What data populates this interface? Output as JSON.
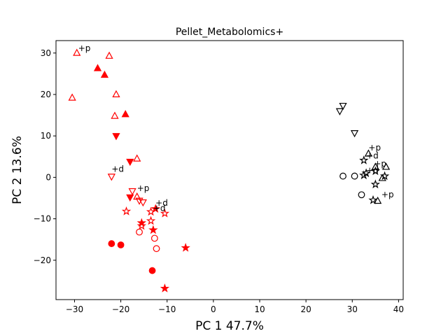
{
  "chart_data": {
    "type": "scatter",
    "title": "Pellet_Metabolomics+",
    "xlabel": "PC 1 47.7%",
    "ylabel": "PC 2 13.6%",
    "xlim": [
      -34,
      41
    ],
    "ylim": [
      -29.5,
      33
    ],
    "xticks": [
      -30,
      -20,
      -10,
      0,
      10,
      20,
      30,
      40
    ],
    "yticks": [
      -20,
      -10,
      0,
      10,
      20,
      30
    ],
    "grid": false,
    "colors": {
      "red": "#ff0000",
      "black": "#000000"
    },
    "points": [
      {
        "x": -29.5,
        "y": 30.0,
        "marker": "triangle-up",
        "fill": "open",
        "color": "#ff0000"
      },
      {
        "x": -22.5,
        "y": 29.3,
        "marker": "triangle-up",
        "fill": "open",
        "color": "#ff0000"
      },
      {
        "x": -25.0,
        "y": 26.3,
        "marker": "triangle-up",
        "fill": "filled",
        "color": "#ff0000"
      },
      {
        "x": -23.5,
        "y": 24.7,
        "marker": "triangle-up",
        "fill": "filled",
        "color": "#ff0000"
      },
      {
        "x": -21.0,
        "y": 20.0,
        "marker": "triangle-up",
        "fill": "open",
        "color": "#ff0000"
      },
      {
        "x": -30.5,
        "y": 19.2,
        "marker": "triangle-up",
        "fill": "open",
        "color": "#ff0000"
      },
      {
        "x": -19.0,
        "y": 15.2,
        "marker": "triangle-up",
        "fill": "filled",
        "color": "#ff0000"
      },
      {
        "x": -21.3,
        "y": 14.8,
        "marker": "triangle-up",
        "fill": "open",
        "color": "#ff0000"
      },
      {
        "x": -21.0,
        "y": 10.0,
        "marker": "triangle-down",
        "fill": "filled",
        "color": "#ff0000"
      },
      {
        "x": -16.5,
        "y": 4.5,
        "marker": "triangle-up",
        "fill": "open",
        "color": "#ff0000"
      },
      {
        "x": -18.0,
        "y": 3.8,
        "marker": "triangle-down",
        "fill": "filled",
        "color": "#ff0000"
      },
      {
        "x": -22.0,
        "y": 0.2,
        "marker": "triangle-down",
        "fill": "open",
        "color": "#ff0000"
      },
      {
        "x": -17.5,
        "y": -3.3,
        "marker": "triangle-down",
        "fill": "open",
        "color": "#ff0000"
      },
      {
        "x": -18.0,
        "y": -4.8,
        "marker": "triangle-down",
        "fill": "filled",
        "color": "#ff0000"
      },
      {
        "x": -16.5,
        "y": -4.7,
        "marker": "triangle-up",
        "fill": "open",
        "color": "#ff0000"
      },
      {
        "x": -16.0,
        "y": -5.6,
        "marker": "triangle-down",
        "fill": "open",
        "color": "#ff0000"
      },
      {
        "x": -15.2,
        "y": -6.0,
        "marker": "triangle-down",
        "fill": "open",
        "color": "#ff0000"
      },
      {
        "x": -18.8,
        "y": -8.2,
        "marker": "star",
        "fill": "open",
        "color": "#ff0000"
      },
      {
        "x": -13.5,
        "y": -8.3,
        "marker": "star",
        "fill": "open",
        "color": "#ff0000"
      },
      {
        "x": -12.5,
        "y": -7.6,
        "marker": "star",
        "fill": "filled",
        "color": "#ff0000"
      },
      {
        "x": -10.5,
        "y": -8.7,
        "marker": "star",
        "fill": "open",
        "color": "#ff0000"
      },
      {
        "x": -13.5,
        "y": -10.5,
        "marker": "star",
        "fill": "open",
        "color": "#ff0000"
      },
      {
        "x": -15.5,
        "y": -11.0,
        "marker": "star",
        "fill": "filled",
        "color": "#ff0000"
      },
      {
        "x": -15.5,
        "y": -11.7,
        "marker": "star",
        "fill": "open",
        "color": "#ff0000"
      },
      {
        "x": -13.0,
        "y": -12.7,
        "marker": "star",
        "fill": "filled",
        "color": "#ff0000"
      },
      {
        "x": -16.0,
        "y": -13.2,
        "marker": "circle",
        "fill": "open",
        "color": "#ff0000"
      },
      {
        "x": -12.7,
        "y": -14.7,
        "marker": "circle",
        "fill": "open",
        "color": "#ff0000"
      },
      {
        "x": -22.0,
        "y": -16.0,
        "marker": "circle",
        "fill": "filled",
        "color": "#ff0000"
      },
      {
        "x": -20.0,
        "y": -16.3,
        "marker": "circle",
        "fill": "filled",
        "color": "#ff0000"
      },
      {
        "x": -12.3,
        "y": -17.2,
        "marker": "circle",
        "fill": "open",
        "color": "#ff0000"
      },
      {
        "x": -6.0,
        "y": -17.0,
        "marker": "star",
        "fill": "filled",
        "color": "#ff0000"
      },
      {
        "x": -13.2,
        "y": -22.5,
        "marker": "circle",
        "fill": "filled",
        "color": "#ff0000"
      },
      {
        "x": -10.5,
        "y": -26.8,
        "marker": "star",
        "fill": "filled",
        "color": "#ff0000"
      },
      {
        "x": 28.0,
        "y": 17.3,
        "marker": "triangle-down",
        "fill": "open",
        "color": "#000000"
      },
      {
        "x": 27.3,
        "y": 16.0,
        "marker": "triangle-down",
        "fill": "open",
        "color": "#000000"
      },
      {
        "x": 30.5,
        "y": 10.7,
        "marker": "triangle-down",
        "fill": "open",
        "color": "#000000"
      },
      {
        "x": 33.5,
        "y": 5.7,
        "marker": "triangle-up",
        "fill": "open",
        "color": "#000000"
      },
      {
        "x": 32.5,
        "y": 4.1,
        "marker": "star",
        "fill": "open",
        "color": "#000000"
      },
      {
        "x": 35.0,
        "y": 2.5,
        "marker": "triangle-up",
        "fill": "open",
        "color": "#000000"
      },
      {
        "x": 37.3,
        "y": 2.5,
        "marker": "triangle-up",
        "fill": "open",
        "color": "#000000"
      },
      {
        "x": 35.0,
        "y": 1.5,
        "marker": "star",
        "fill": "open",
        "color": "#000000"
      },
      {
        "x": 33.0,
        "y": 1.0,
        "marker": "star",
        "fill": "open",
        "color": "#000000"
      },
      {
        "x": 32.5,
        "y": 0.5,
        "marker": "star",
        "fill": "open",
        "color": "#000000"
      },
      {
        "x": 37.0,
        "y": 0.3,
        "marker": "star",
        "fill": "open",
        "color": "#000000"
      },
      {
        "x": 36.5,
        "y": -0.2,
        "marker": "triangle-up",
        "fill": "open",
        "color": "#000000"
      },
      {
        "x": 28.0,
        "y": 0.3,
        "marker": "circle",
        "fill": "open",
        "color": "#000000"
      },
      {
        "x": 30.5,
        "y": 0.3,
        "marker": "circle",
        "fill": "open",
        "color": "#000000"
      },
      {
        "x": 35.0,
        "y": -1.7,
        "marker": "star",
        "fill": "open",
        "color": "#000000"
      },
      {
        "x": 32.0,
        "y": -4.2,
        "marker": "circle",
        "fill": "open",
        "color": "#000000"
      },
      {
        "x": 34.5,
        "y": -5.5,
        "marker": "star",
        "fill": "open",
        "color": "#000000"
      },
      {
        "x": 35.5,
        "y": -5.7,
        "marker": "triangle-up",
        "fill": "open",
        "color": "#000000"
      }
    ],
    "annotations": [
      {
        "text": "+p",
        "x": -29.2,
        "y": 30.5,
        "color": "#000000"
      },
      {
        "text": "+d",
        "x": -22.0,
        "y": 1.3,
        "color": "#000000"
      },
      {
        "text": "+p",
        "x": -16.5,
        "y": -3.3,
        "color": "#000000"
      },
      {
        "text": "+d",
        "x": -12.5,
        "y": -6.9,
        "color": "#000000"
      },
      {
        "text": "+d",
        "x": -13.0,
        "y": -8.1,
        "color": "#000000"
      },
      {
        "text": "+p",
        "x": 33.5,
        "y": 6.5,
        "color": "#000000"
      },
      {
        "text": "+d",
        "x": 33.0,
        "y": 4.5,
        "color": "#000000"
      },
      {
        "text": "+p",
        "x": 34.7,
        "y": 2.6,
        "color": "#000000"
      },
      {
        "text": "+d",
        "x": 33.0,
        "y": 1.0,
        "color": "#000000"
      },
      {
        "text": "+p",
        "x": 36.3,
        "y": -4.8,
        "color": "#000000"
      }
    ]
  }
}
